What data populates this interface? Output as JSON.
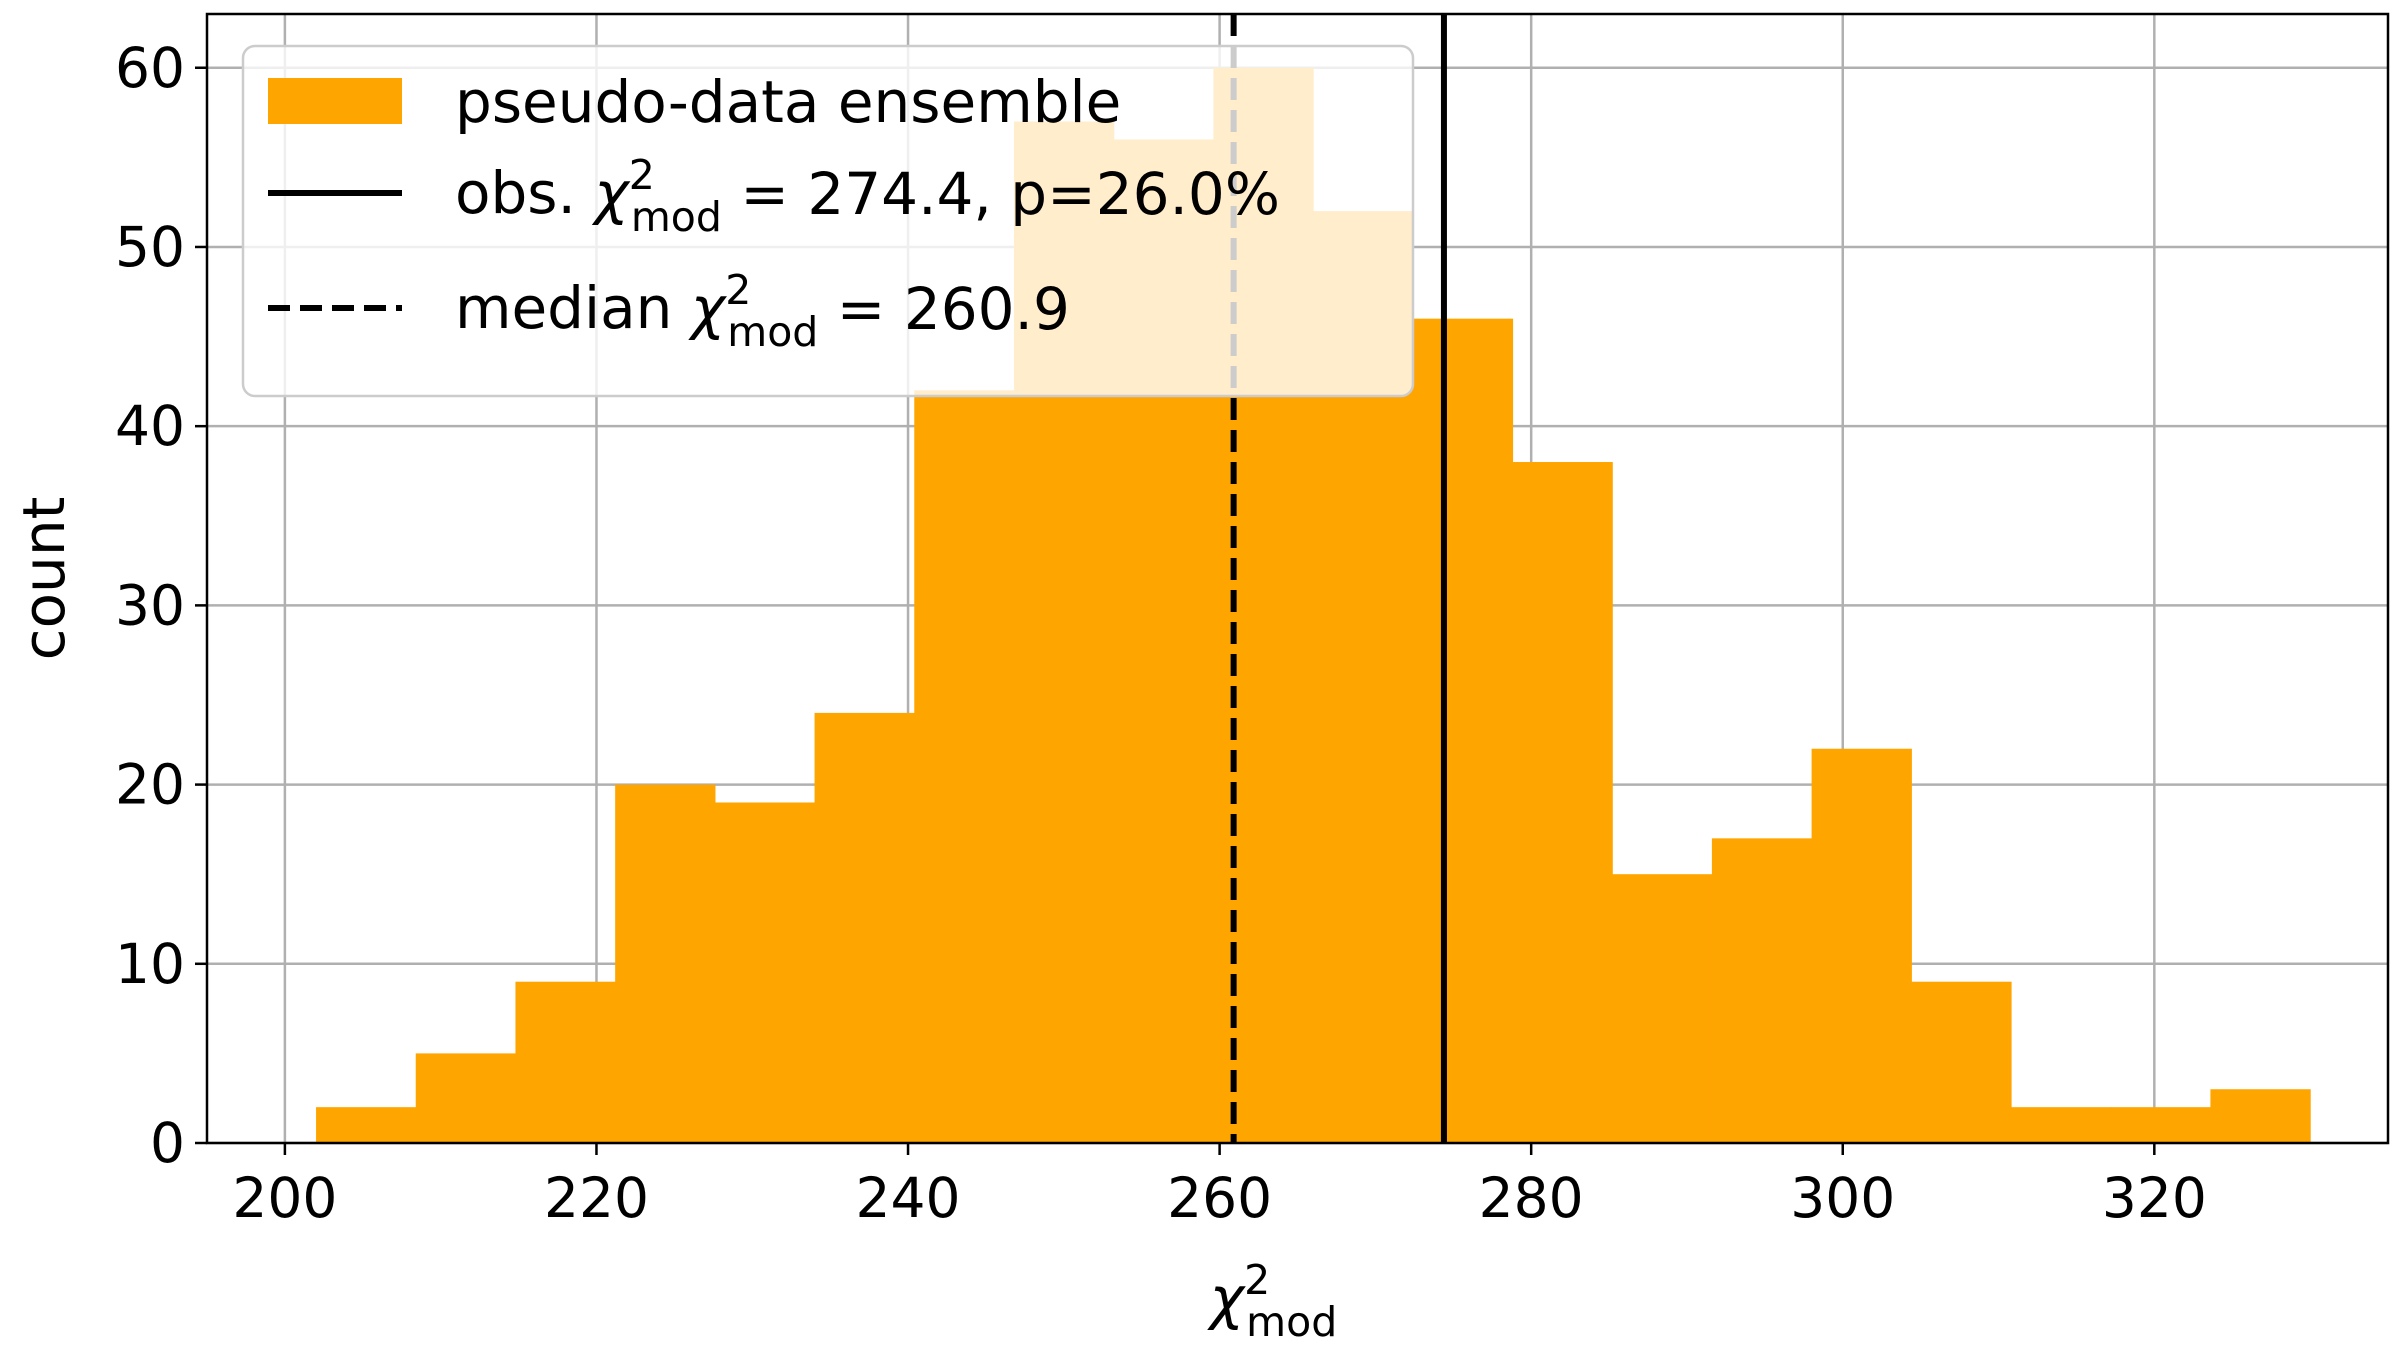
{
  "chart_data": {
    "type": "bar",
    "subtype": "histogram",
    "xlabel": "χ²mod",
    "ylabel": "count",
    "xlim": [
      195,
      335
    ],
    "ylim": [
      0,
      63
    ],
    "grid": true,
    "legend_position": "top-left",
    "xticks": [
      200,
      220,
      240,
      260,
      280,
      300,
      320
    ],
    "yticks": [
      0,
      10,
      20,
      30,
      40,
      50,
      60
    ],
    "bin_edges": [
      202.0,
      208.4,
      214.8,
      221.2,
      227.6,
      234.0,
      240.4,
      246.8,
      253.2,
      259.6,
      266.0,
      272.4,
      278.8,
      285.2,
      291.6,
      298.0,
      304.4,
      310.8,
      317.2,
      323.6,
      330.0
    ],
    "series": [
      {
        "name": "pseudo-data ensemble",
        "color": "#FFA500",
        "values": [
          2,
          5,
          9,
          20,
          19,
          24,
          42,
          57,
          56,
          60,
          52,
          46,
          38,
          15,
          17,
          22,
          9,
          2,
          2,
          3
        ]
      }
    ],
    "vlines": [
      {
        "x": 274.4,
        "style": "solid",
        "color": "#000000",
        "label": "obs. χ²mod = 274.4, p=26.0%"
      },
      {
        "x": 260.9,
        "style": "dashed",
        "color": "#000000",
        "label": "median χ²mod = 260.9"
      }
    ]
  }
}
